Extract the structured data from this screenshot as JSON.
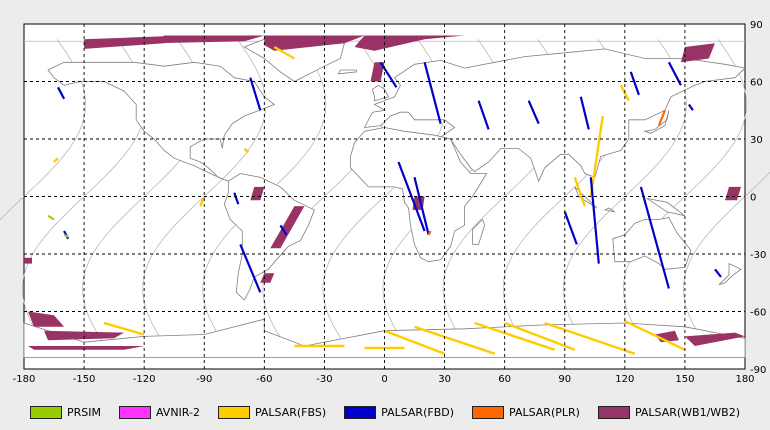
{
  "map": {
    "x_ticks": [
      "-180",
      "-150",
      "-120",
      "-90",
      "-60",
      "-30",
      "0",
      "30",
      "60",
      "90",
      "120",
      "150",
      "180"
    ],
    "y_ticks": [
      "90",
      "60",
      "30",
      "0",
      "-30",
      "-60",
      "-90"
    ],
    "x_range": [
      -180,
      180
    ],
    "y_range": [
      -90,
      90
    ],
    "grid": "dashed",
    "background": "#ffffff"
  },
  "legend": [
    {
      "label": "PRSIM",
      "color": "#99cc00"
    },
    {
      "label": "AVNIR-2",
      "color": "#ff33ff"
    },
    {
      "label": "PALSAR(FBS)",
      "color": "#ffcc00"
    },
    {
      "label": "PALSAR(FBD)",
      "color": "#0000cc"
    },
    {
      "label": "PALSAR(PLR)",
      "color": "#ff6600"
    },
    {
      "label": "PALSAR(WB1/WB2)",
      "color": "#993366"
    }
  ],
  "swaths": {
    "wb": [
      [
        [
          -150,
          82
        ],
        [
          -100,
          84
        ],
        [
          -110,
          80
        ],
        [
          -150,
          77
        ]
      ],
      [
        [
          -110,
          84
        ],
        [
          -60,
          84
        ],
        [
          -70,
          81
        ],
        [
          -115,
          80
        ]
      ],
      [
        [
          -60,
          84
        ],
        [
          -10,
          84
        ],
        [
          -20,
          80
        ],
        [
          -55,
          76
        ],
        [
          -60,
          79
        ]
      ],
      [
        [
          -10,
          84
        ],
        [
          40,
          84
        ],
        [
          20,
          82
        ],
        [
          -5,
          76
        ],
        [
          -15,
          78
        ]
      ],
      [
        [
          -5,
          70
        ],
        [
          0,
          70
        ],
        [
          -2,
          60
        ],
        [
          -7,
          60
        ]
      ],
      [
        [
          150,
          78
        ],
        [
          165,
          80
        ],
        [
          162,
          72
        ],
        [
          148,
          70
        ]
      ],
      [
        [
          -65,
          5
        ],
        [
          -60,
          5
        ],
        [
          -62,
          -2
        ],
        [
          -67,
          -2
        ]
      ],
      [
        [
          -45,
          -5
        ],
        [
          -40,
          -5
        ],
        [
          -52,
          -27
        ],
        [
          -57,
          -27
        ]
      ],
      [
        [
          -60,
          -40
        ],
        [
          -55,
          -40
        ],
        [
          -57,
          -45
        ],
        [
          -62,
          -45
        ]
      ],
      [
        [
          15,
          0
        ],
        [
          20,
          0
        ],
        [
          19,
          -7
        ],
        [
          14,
          -7
        ]
      ],
      [
        [
          172,
          5
        ],
        [
          178,
          5
        ],
        [
          176,
          -2
        ],
        [
          170,
          -2
        ]
      ],
      [
        [
          -178,
          -60
        ],
        [
          -165,
          -62
        ],
        [
          -160,
          -68
        ],
        [
          -175,
          -68
        ]
      ],
      [
        [
          -170,
          -70
        ],
        [
          -130,
          -71
        ],
        [
          -135,
          -74
        ],
        [
          -168,
          -75
        ]
      ],
      [
        [
          -178,
          -78
        ],
        [
          -120,
          -78
        ],
        [
          -130,
          -80
        ],
        [
          -175,
          -80
        ]
      ],
      [
        [
          -180,
          -32
        ],
        [
          -176,
          -32
        ],
        [
          -176,
          -35
        ],
        [
          -180,
          -35
        ]
      ],
      [
        [
          150,
          -73
        ],
        [
          175,
          -71
        ],
        [
          180,
          -73
        ],
        [
          155,
          -78
        ]
      ],
      [
        [
          135,
          -72
        ],
        [
          145,
          -70
        ],
        [
          147,
          -75
        ],
        [
          138,
          -76
        ]
      ]
    ],
    "fbd": [
      [
        [
          -163,
          57
        ],
        [
          -160,
          51
        ]
      ],
      [
        [
          -67,
          62
        ],
        [
          -62,
          45
        ]
      ],
      [
        [
          -75,
          2
        ],
        [
          -73,
          -4
        ]
      ],
      [
        [
          -72,
          -25
        ],
        [
          -62,
          -50
        ]
      ],
      [
        [
          -52,
          -15
        ],
        [
          -49,
          -20
        ]
      ],
      [
        [
          -2,
          70
        ],
        [
          6,
          57
        ]
      ],
      [
        [
          20,
          70
        ],
        [
          28,
          38
        ]
      ],
      [
        [
          47,
          50
        ],
        [
          52,
          35
        ]
      ],
      [
        [
          72,
          50
        ],
        [
          77,
          38
        ]
      ],
      [
        [
          98,
          52
        ],
        [
          102,
          35
        ]
      ],
      [
        [
          142,
          70
        ],
        [
          148,
          58
        ]
      ],
      [
        [
          152,
          48
        ],
        [
          154,
          45
        ]
      ],
      [
        [
          7,
          18
        ],
        [
          20,
          -18
        ]
      ],
      [
        [
          15,
          10
        ],
        [
          22,
          -20
        ]
      ],
      [
        [
          90,
          -8
        ],
        [
          96,
          -25
        ]
      ],
      [
        [
          103,
          10
        ],
        [
          107,
          -35
        ]
      ],
      [
        [
          128,
          5
        ],
        [
          142,
          -48
        ]
      ],
      [
        [
          123,
          65
        ],
        [
          127,
          53
        ]
      ],
      [
        [
          -160,
          -18
        ],
        [
          -158,
          -22
        ]
      ],
      [
        [
          165,
          -38
        ],
        [
          168,
          -42
        ]
      ]
    ],
    "fbs": [
      [
        [
          -55,
          78
        ],
        [
          -45,
          72
        ]
      ],
      [
        [
          118,
          58
        ],
        [
          122,
          50
        ]
      ],
      [
        [
          109,
          42
        ],
        [
          103,
          0
        ]
      ],
      [
        [
          95,
          10
        ],
        [
          100,
          -5
        ]
      ],
      [
        [
          -90,
          0
        ],
        [
          -92,
          -5
        ]
      ],
      [
        [
          -165,
          18
        ],
        [
          -163,
          20
        ]
      ],
      [
        [
          -70,
          25
        ],
        [
          -68,
          23
        ]
      ],
      [
        [
          -140,
          -66
        ],
        [
          -120,
          -72
        ]
      ],
      [
        [
          0,
          -70
        ],
        [
          30,
          -82
        ]
      ],
      [
        [
          15,
          -68
        ],
        [
          55,
          -82
        ]
      ],
      [
        [
          45,
          -66
        ],
        [
          85,
          -80
        ]
      ],
      [
        [
          60,
          -66
        ],
        [
          95,
          -80
        ]
      ],
      [
        [
          80,
          -66
        ],
        [
          125,
          -82
        ]
      ],
      [
        [
          120,
          -65
        ],
        [
          150,
          -80
        ]
      ],
      [
        [
          -10,
          -79
        ],
        [
          10,
          -79
        ]
      ],
      [
        [
          -45,
          -78
        ],
        [
          -20,
          -78
        ]
      ]
    ],
    "plr": [
      [
        [
          140,
          45
        ],
        [
          137,
          37
        ]
      ],
      [
        [
          23,
          -18
        ],
        [
          22,
          -20
        ]
      ]
    ],
    "prism_avnir": [
      [
        [
          -168,
          -10
        ],
        [
          -165,
          -12
        ]
      ],
      [
        [
          -160,
          -20
        ],
        [
          -158,
          -21
        ]
      ]
    ]
  },
  "land": [
    [
      [
        -168,
        66
      ],
      [
        -160,
        70
      ],
      [
        -140,
        70
      ],
      [
        -125,
        70
      ],
      [
        -110,
        68
      ],
      [
        -95,
        70
      ],
      [
        -82,
        68
      ],
      [
        -75,
        62
      ],
      [
        -65,
        60
      ],
      [
        -60,
        52
      ],
      [
        -55,
        48
      ],
      [
        -65,
        44
      ],
      [
        -70,
        42
      ],
      [
        -76,
        38
      ],
      [
        -80,
        32
      ],
      [
        -81,
        25
      ],
      [
        -82,
        30
      ],
      [
        -90,
        30
      ],
      [
        -97,
        26
      ],
      [
        -97,
        20
      ],
      [
        -92,
        18
      ],
      [
        -88,
        15
      ],
      [
        -83,
        10
      ],
      [
        -78,
        8
      ],
      [
        -85,
        11
      ],
      [
        -95,
        16
      ],
      [
        -105,
        20
      ],
      [
        -110,
        24
      ],
      [
        -115,
        30
      ],
      [
        -120,
        34
      ],
      [
        -124,
        40
      ],
      [
        -124,
        48
      ],
      [
        -130,
        55
      ],
      [
        -140,
        60
      ],
      [
        -152,
        60
      ],
      [
        -160,
        58
      ],
      [
        -165,
        62
      ]
    ],
    [
      [
        -78,
        8
      ],
      [
        -72,
        12
      ],
      [
        -62,
        10
      ],
      [
        -52,
        5
      ],
      [
        -45,
        -2
      ],
      [
        -35,
        -7
      ],
      [
        -38,
        -15
      ],
      [
        -42,
        -23
      ],
      [
        -48,
        -26
      ],
      [
        -54,
        -33
      ],
      [
        -58,
        -38
      ],
      [
        -65,
        -42
      ],
      [
        -67,
        -48
      ],
      [
        -70,
        -54
      ],
      [
        -74,
        -50
      ],
      [
        -73,
        -40
      ],
      [
        -71,
        -30
      ],
      [
        -71,
        -18
      ],
      [
        -77,
        -12
      ],
      [
        -80,
        -4
      ],
      [
        -78,
        2
      ]
    ],
    [
      [
        -45,
        60
      ],
      [
        -30,
        68
      ],
      [
        -22,
        72
      ],
      [
        -20,
        80
      ],
      [
        -40,
        83
      ],
      [
        -60,
        82
      ],
      [
        -70,
        78
      ],
      [
        -60,
        72
      ],
      [
        -52,
        65
      ]
    ],
    [
      [
        -10,
        36
      ],
      [
        -6,
        44
      ],
      [
        0,
        45
      ],
      [
        -5,
        48
      ],
      [
        5,
        52
      ],
      [
        8,
        58
      ],
      [
        5,
        62
      ],
      [
        15,
        69
      ],
      [
        28,
        71
      ],
      [
        40,
        67
      ],
      [
        55,
        70
      ],
      [
        70,
        73
      ],
      [
        90,
        75
      ],
      [
        110,
        77
      ],
      [
        130,
        72
      ],
      [
        150,
        72
      ],
      [
        170,
        69
      ],
      [
        180,
        67
      ],
      [
        175,
        62
      ],
      [
        160,
        60
      ],
      [
        155,
        58
      ],
      [
        143,
        52
      ],
      [
        140,
        45
      ],
      [
        130,
        40
      ],
      [
        122,
        40
      ],
      [
        122,
        30
      ],
      [
        118,
        24
      ],
      [
        108,
        21
      ],
      [
        105,
        10
      ],
      [
        100,
        12
      ],
      [
        98,
        16
      ],
      [
        92,
        22
      ],
      [
        88,
        22
      ],
      [
        80,
        15
      ],
      [
        77,
        8
      ],
      [
        73,
        20
      ],
      [
        67,
        25
      ],
      [
        58,
        25
      ],
      [
        52,
        18
      ],
      [
        45,
        13
      ],
      [
        43,
        15
      ],
      [
        38,
        22
      ],
      [
        33,
        30
      ],
      [
        28,
        31
      ],
      [
        35,
        36
      ],
      [
        30,
        40
      ],
      [
        25,
        40
      ],
      [
        20,
        40
      ],
      [
        15,
        40
      ],
      [
        12,
        44
      ],
      [
        8,
        44
      ],
      [
        3,
        42
      ],
      [
        -2,
        37
      ]
    ],
    [
      [
        -17,
        21
      ],
      [
        -17,
        15
      ],
      [
        -8,
        5
      ],
      [
        5,
        5
      ],
      [
        9,
        4
      ],
      [
        10,
        -3
      ],
      [
        12,
        -6
      ],
      [
        13,
        -15
      ],
      [
        15,
        -25
      ],
      [
        18,
        -32
      ],
      [
        22,
        -34
      ],
      [
        28,
        -33
      ],
      [
        33,
        -26
      ],
      [
        35,
        -18
      ],
      [
        40,
        -15
      ],
      [
        40,
        -5
      ],
      [
        44,
        0
      ],
      [
        51,
        12
      ],
      [
        43,
        12
      ],
      [
        38,
        18
      ],
      [
        33,
        30
      ],
      [
        25,
        32
      ],
      [
        10,
        34
      ],
      [
        0,
        36
      ],
      [
        -10,
        34
      ],
      [
        -15,
        28
      ]
    ],
    [
      [
        114,
        -22
      ],
      [
        115,
        -34
      ],
      [
        123,
        -34
      ],
      [
        130,
        -31
      ],
      [
        137,
        -35
      ],
      [
        140,
        -38
      ],
      [
        150,
        -37
      ],
      [
        153,
        -28
      ],
      [
        146,
        -19
      ],
      [
        142,
        -11
      ],
      [
        137,
        -12
      ],
      [
        130,
        -12
      ],
      [
        125,
        -14
      ],
      [
        120,
        -20
      ]
    ],
    [
      [
        44,
        -25
      ],
      [
        47,
        -25
      ],
      [
        50,
        -15
      ],
      [
        49,
        -12
      ],
      [
        44,
        -17
      ]
    ],
    [
      [
        -180,
        -66
      ],
      [
        -150,
        -76
      ],
      [
        -120,
        -73
      ],
      [
        -90,
        -72
      ],
      [
        -60,
        -64
      ],
      [
        -60,
        -70
      ],
      [
        -40,
        -78
      ],
      [
        0,
        -70
      ],
      [
        40,
        -69
      ],
      [
        80,
        -67
      ],
      [
        120,
        -66
      ],
      [
        150,
        -68
      ],
      [
        170,
        -72
      ],
      [
        180,
        -74
      ],
      [
        180,
        -84
      ],
      [
        -180,
        -84
      ]
    ],
    [
      [
        130,
        34
      ],
      [
        135,
        35
      ],
      [
        141,
        40
      ],
      [
        142,
        45
      ],
      [
        140,
        37
      ],
      [
        133,
        33
      ]
    ],
    [
      [
        -5,
        50
      ],
      [
        2,
        52
      ],
      [
        0,
        56
      ],
      [
        -3,
        58
      ],
      [
        -6,
        56
      ],
      [
        -5,
        52
      ]
    ],
    [
      [
        95,
        5
      ],
      [
        105,
        -5
      ],
      [
        106,
        -6
      ],
      [
        97,
        0
      ]
    ],
    [
      [
        110,
        -7
      ],
      [
        115,
        -8
      ],
      [
        112,
        -6
      ]
    ],
    [
      [
        131,
        -1
      ],
      [
        141,
        -3
      ],
      [
        150,
        -10
      ],
      [
        141,
        -8
      ]
    ],
    [
      [
        -23,
        64
      ],
      [
        -14,
        65
      ],
      [
        -14,
        66
      ],
      [
        -22,
        66
      ]
    ],
    [
      [
        172,
        -35
      ],
      [
        178,
        -38
      ],
      [
        174,
        -41
      ],
      [
        170,
        -45
      ],
      [
        167,
        -46
      ],
      [
        172,
        -41
      ]
    ]
  ]
}
